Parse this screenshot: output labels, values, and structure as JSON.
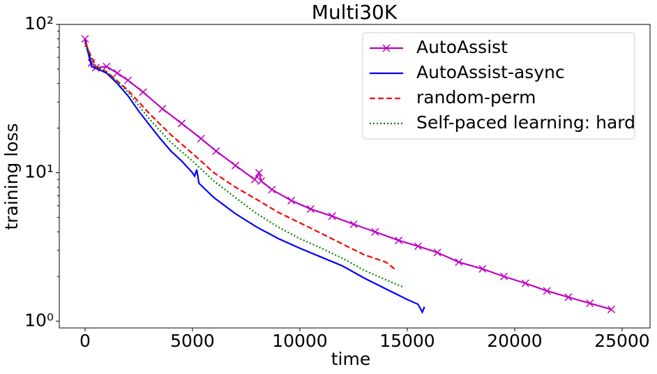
{
  "chart_data": {
    "type": "line",
    "title": "Multi30K",
    "x_label": "time",
    "y_label": "training loss",
    "log_y": true,
    "legend": "upper right",
    "xlim": [
      -1200,
      26300
    ],
    "ylim": [
      0.9,
      100
    ],
    "xticks": [
      0,
      5000,
      10000,
      15000,
      20000,
      25000
    ],
    "yticks": [
      {
        "value": 1,
        "label": "10⁰"
      },
      {
        "value": 10,
        "label": "10¹"
      },
      {
        "value": 100,
        "label": "10²"
      }
    ],
    "series": [
      {
        "name": "AutoAssist",
        "color": "#bf00bf",
        "style": "solid",
        "marker": "x",
        "x": [
          0,
          300,
          500,
          1000,
          1500,
          2000,
          2700,
          3600,
          4500,
          5400,
          6100,
          7000,
          7900,
          8100,
          8200,
          8700,
          9600,
          10500,
          11500,
          12500,
          13500,
          14600,
          15500,
          16400,
          17400,
          18500,
          19500,
          20500,
          21500,
          22500,
          23500,
          24500
        ],
        "values": [
          80,
          55,
          51,
          52,
          47,
          42,
          35,
          27,
          21.5,
          17,
          14,
          11.2,
          9,
          10,
          8.8,
          7.7,
          6.5,
          5.7,
          5.1,
          4.5,
          4,
          3.5,
          3.2,
          2.9,
          2.5,
          2.25,
          2,
          1.8,
          1.6,
          1.45,
          1.32,
          1.2
        ]
      },
      {
        "name": "AutoAssist-async",
        "color": "#0000ff",
        "style": "solid",
        "x": [
          0,
          300,
          600,
          1000,
          1500,
          2000,
          2500,
          3000,
          3500,
          4000,
          4500,
          5000,
          5100,
          5200,
          5300,
          6000,
          7000,
          8000,
          9000,
          10000,
          11000,
          12000,
          13000,
          14000,
          15000,
          15500,
          15700,
          15800
        ],
        "values": [
          78,
          52,
          50,
          47,
          40,
          33,
          26,
          21,
          17,
          14,
          12,
          10,
          9.5,
          10.5,
          8.5,
          6.8,
          5.3,
          4.3,
          3.6,
          3.1,
          2.7,
          2.35,
          1.95,
          1.65,
          1.4,
          1.3,
          1.15,
          1.25
        ]
      },
      {
        "name": "random-perm",
        "color": "#ff0000",
        "style": "dashed",
        "x": [
          0,
          500,
          1000,
          2000,
          3000,
          4000,
          5000,
          6000,
          7000,
          8000,
          9000,
          10000,
          11000,
          12000,
          13000,
          14000,
          14500
        ],
        "values": [
          75,
          52,
          48,
          36,
          25,
          18,
          13.5,
          10,
          8,
          6.6,
          5.4,
          4.6,
          3.9,
          3.3,
          2.8,
          2.5,
          2.2
        ]
      },
      {
        "name": "Self-paced learning: hard",
        "color": "#008000",
        "style": "dotted",
        "x": [
          0,
          500,
          1000,
          2000,
          3000,
          4000,
          5000,
          6000,
          7000,
          8000,
          9000,
          10000,
          11000,
          12000,
          13000,
          14000,
          14800
        ],
        "values": [
          72,
          52,
          48,
          35,
          23,
          16,
          12,
          8.8,
          6.8,
          5.3,
          4.3,
          3.6,
          3.1,
          2.65,
          2.2,
          1.9,
          1.7
        ]
      }
    ]
  }
}
